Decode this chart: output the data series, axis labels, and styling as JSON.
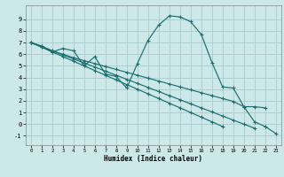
{
  "xlabel": "Humidex (Indice chaleur)",
  "background_color": "#cce8e8",
  "grid_color": "#aacccc",
  "line_color": "#1a7070",
  "xlim": [
    -0.5,
    23.5
  ],
  "ylim": [
    -1.8,
    10.2
  ],
  "yticks": [
    -1,
    0,
    1,
    2,
    3,
    4,
    5,
    6,
    7,
    8,
    9
  ],
  "xticks": [
    0,
    1,
    2,
    3,
    4,
    5,
    6,
    7,
    8,
    9,
    10,
    11,
    12,
    13,
    14,
    15,
    16,
    17,
    18,
    19,
    20,
    21,
    22,
    23
  ],
  "line1_x": [
    0,
    1,
    2,
    3,
    4,
    5,
    6,
    7,
    8,
    9,
    10,
    11,
    12,
    13,
    14,
    15,
    16,
    17,
    18,
    19,
    20,
    21,
    22,
    23
  ],
  "line1_y": [
    7.0,
    6.7,
    6.2,
    6.5,
    6.3,
    5.0,
    5.8,
    4.3,
    4.1,
    3.1,
    5.2,
    7.2,
    8.5,
    9.3,
    9.2,
    8.8,
    7.7,
    5.3,
    3.2,
    3.1,
    1.5,
    0.2,
    -0.2,
    -0.8
  ],
  "line2_x": [
    0,
    1,
    2,
    3,
    4,
    5,
    6,
    7,
    8,
    9,
    10,
    11,
    12,
    13,
    14,
    15,
    16,
    17,
    18,
    19,
    20,
    21,
    22
  ],
  "line2_y": [
    7.0,
    6.7,
    6.3,
    6.0,
    5.7,
    5.45,
    5.2,
    4.95,
    4.7,
    4.45,
    4.2,
    3.95,
    3.7,
    3.45,
    3.2,
    2.95,
    2.7,
    2.45,
    2.2,
    1.95,
    1.5,
    1.5,
    1.4
  ],
  "line3_x": [
    0,
    1,
    2,
    3,
    4,
    5,
    6,
    7,
    8,
    9,
    10,
    11,
    12,
    13,
    14,
    15,
    16,
    17,
    18,
    19,
    20,
    21
  ],
  "line3_y": [
    7.0,
    6.65,
    6.3,
    5.95,
    5.6,
    5.25,
    4.9,
    4.55,
    4.2,
    3.85,
    3.5,
    3.15,
    2.8,
    2.45,
    2.1,
    1.75,
    1.4,
    1.05,
    0.7,
    0.35,
    0.0,
    -0.35
  ],
  "line4_x": [
    0,
    1,
    2,
    3,
    4,
    5,
    6,
    7,
    8,
    9,
    10,
    11,
    12,
    13,
    14,
    15,
    16,
    17,
    18
  ],
  "line4_y": [
    7.0,
    6.6,
    6.2,
    5.8,
    5.4,
    5.0,
    4.6,
    4.2,
    3.8,
    3.4,
    3.0,
    2.6,
    2.2,
    1.8,
    1.4,
    1.0,
    0.6,
    0.2,
    -0.2
  ]
}
